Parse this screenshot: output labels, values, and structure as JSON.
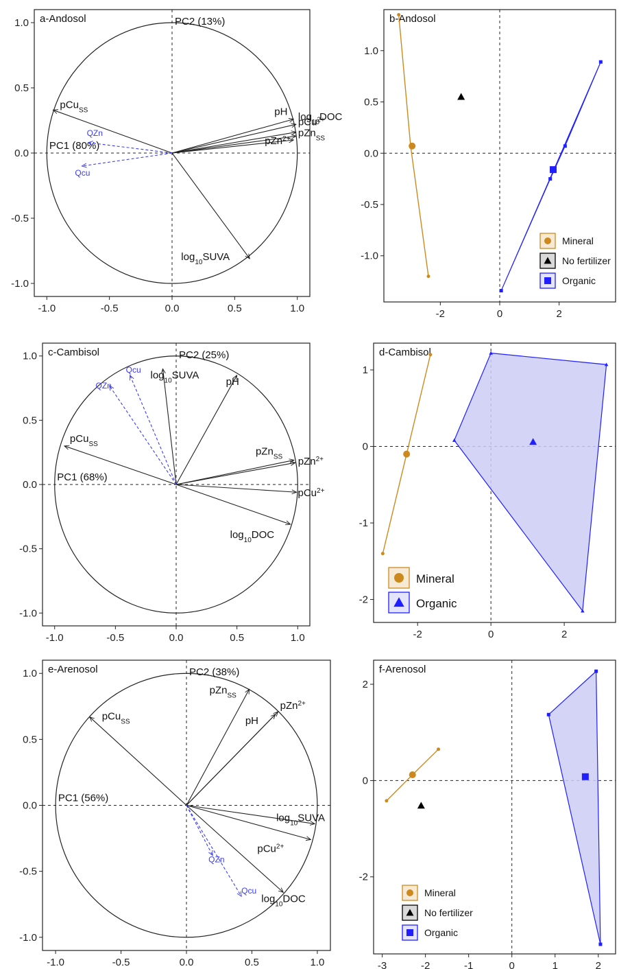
{
  "figure": {
    "colors": {
      "mineral": "#cc8a1e",
      "no_fertilizer": "#000000",
      "organic": "#1f1fff",
      "organic_fill": "#cccdf5",
      "loading": "#222222",
      "qvar": "#3a3aff"
    }
  },
  "chart_data": [
    {
      "type": "scatter",
      "panel": "a-Andosol",
      "pc1_label": "PC1 (80%)",
      "pc2_label": "PC2 (13%)",
      "xlim": [
        -1.1,
        1.1
      ],
      "ylim": [
        -1.1,
        1.1
      ],
      "xticks": [
        "-1.0",
        "-0.5",
        "0.0",
        "0.5",
        "1.0"
      ],
      "yticks": [
        "1.0",
        "0.5",
        "0.0",
        "-0.5",
        "-1.0"
      ],
      "variables": [
        {
          "label": "pCu",
          "sub": "SS",
          "sup": "",
          "x": -0.95,
          "y": 0.33
        },
        {
          "label": "pH",
          "sub": "",
          "sup": "",
          "x": 0.97,
          "y": 0.26
        },
        {
          "label": "log",
          "sub": "10",
          "sup": "",
          "after": "DOC",
          "x": 0.99,
          "y": 0.22
        },
        {
          "label": "pCu",
          "sub": "",
          "sup": "2+",
          "x": 0.99,
          "y": 0.16
        },
        {
          "label": "pZn",
          "sub": "SS",
          "sup": "",
          "x": 0.99,
          "y": 0.13
        },
        {
          "label": "pZn",
          "sub": "",
          "sup": "2+",
          "x": 0.97,
          "y": 0.1
        },
        {
          "label": "log",
          "sub": "10",
          "sup": "",
          "after": "SUVA",
          "x": 0.62,
          "y": -0.81
        }
      ],
      "supplementary": [
        {
          "label": "QZn",
          "x": -0.67,
          "y": 0.08
        },
        {
          "label": "Qcu",
          "x": -0.72,
          "y": -0.1
        }
      ]
    },
    {
      "type": "scatter",
      "panel": "b-Andosol",
      "xlim": [
        -3.9,
        3.9
      ],
      "ylim": [
        -1.45,
        1.4
      ],
      "xticks": [
        "-2",
        "0",
        "2"
      ],
      "yticks": [
        "1.0",
        "0.5",
        "0.0",
        "-0.5",
        "-1.0"
      ],
      "legend": [
        "Mineral",
        "No fertilizer",
        "Organic"
      ],
      "legend_position": "bottom-right",
      "groups": [
        {
          "name": "Mineral",
          "hull": [
            [
              -3.4,
              1.35
            ],
            [
              -3.0,
              0.07
            ],
            [
              -2.4,
              -1.2
            ]
          ],
          "centroid": [
            -2.95,
            0.07
          ]
        },
        {
          "name": "No fertilizer",
          "hull": [],
          "centroid": [
            -1.3,
            0.55
          ]
        },
        {
          "name": "Organic",
          "hull": [
            [
              3.4,
              0.89
            ],
            [
              2.2,
              0.07
            ],
            [
              1.7,
              -0.25
            ],
            [
              0.05,
              -1.34
            ]
          ],
          "centroid": [
            1.8,
            -0.16
          ]
        }
      ]
    },
    {
      "type": "scatter",
      "panel": "c-Cambisol",
      "pc1_label": "PC1 (68%)",
      "pc2_label": "PC2 (25%)",
      "xlim": [
        -1.1,
        1.1
      ],
      "ylim": [
        -1.1,
        1.1
      ],
      "xticks": [
        "-1.0",
        "-0.5",
        "0.0",
        "0.5",
        "1.0"
      ],
      "yticks": [
        "1.0",
        "0.5",
        "0.0",
        "-0.5",
        "-1.0"
      ],
      "variables": [
        {
          "label": "log",
          "sub": "10",
          "sup": "",
          "after": "SUVA",
          "x": -0.11,
          "y": 0.9
        },
        {
          "label": "pH",
          "sub": "",
          "sup": "",
          "x": 0.5,
          "y": 0.85
        },
        {
          "label": "pCu",
          "sub": "SS",
          "sup": "",
          "x": -0.92,
          "y": 0.3
        },
        {
          "label": "pZn",
          "sub": "SS",
          "sup": "",
          "x": 0.97,
          "y": 0.19
        },
        {
          "label": "pZn",
          "sub": "",
          "sup": "2+",
          "x": 0.98,
          "y": 0.17
        },
        {
          "label": "pCu",
          "sub": "",
          "sup": "2+",
          "x": 0.99,
          "y": -0.06
        },
        {
          "label": "log",
          "sub": "10",
          "sup": "",
          "after": "DOC",
          "x": 0.94,
          "y": -0.31
        }
      ],
      "supplementary": [
        {
          "label": "QZn",
          "x": -0.55,
          "y": 0.77
        },
        {
          "label": "Qcu",
          "x": -0.38,
          "y": 0.85
        }
      ]
    },
    {
      "type": "scatter",
      "panel": "d-Cambisol",
      "xlim": [
        -3.2,
        3.4
      ],
      "ylim": [
        -2.3,
        1.35
      ],
      "xticks": [
        "-2",
        "0",
        "2"
      ],
      "yticks": [
        "1",
        "0",
        "-1",
        "-2"
      ],
      "legend": [
        "Mineral",
        "Organic"
      ],
      "legend_position": "bottom-left",
      "groups": [
        {
          "name": "Mineral",
          "hull": [
            [
              -1.65,
              1.2
            ],
            [
              -2.3,
              -0.1
            ],
            [
              -2.95,
              -1.4
            ]
          ],
          "centroid": [
            -2.3,
            -0.1
          ]
        },
        {
          "name": "Organic",
          "hull": [
            [
              0.0,
              1.22
            ],
            [
              3.15,
              1.07
            ],
            [
              2.5,
              -2.15
            ],
            [
              -1.0,
              0.08
            ]
          ],
          "centroid": [
            1.15,
            0.06
          ]
        }
      ]
    },
    {
      "type": "scatter",
      "panel": "e-Arenosol",
      "pc1_label": "PC1 (56%)",
      "pc2_label": "PC2 (38%)",
      "xlim": [
        -1.1,
        1.1
      ],
      "ylim": [
        -1.1,
        1.1
      ],
      "xticks": [
        "-1.0",
        "-0.5",
        "0.0",
        "0.5",
        "1.0"
      ],
      "yticks": [
        "1.0",
        "0.5",
        "0.0",
        "-0.5",
        "-1.0"
      ],
      "variables": [
        {
          "label": "pCu",
          "sub": "SS",
          "sup": "",
          "x": -0.74,
          "y": 0.67
        },
        {
          "label": "pZn",
          "sub": "SS",
          "sup": "",
          "x": 0.48,
          "y": 0.88
        },
        {
          "label": "pZn",
          "sub": "",
          "sup": "2+",
          "x": 0.7,
          "y": 0.71
        },
        {
          "label": "pH",
          "sub": "",
          "sup": "",
          "x": 0.68,
          "y": 0.69
        },
        {
          "label": "log",
          "sub": "10",
          "sup": "",
          "after": "SUVA",
          "x": 0.98,
          "y": -0.14
        },
        {
          "label": "pCu",
          "sub": "",
          "sup": "2+",
          "x": 0.95,
          "y": -0.26
        },
        {
          "label": "log",
          "sub": "10",
          "sup": "",
          "after": "DOC",
          "x": 0.74,
          "y": -0.66
        }
      ],
      "supplementary": [
        {
          "label": "QZn",
          "x": 0.2,
          "y": -0.38
        },
        {
          "label": "Qcu",
          "x": 0.42,
          "y": -0.69
        }
      ]
    },
    {
      "type": "scatter",
      "panel": "f-Arenosol",
      "xlim": [
        -3.2,
        2.4
      ],
      "ylim": [
        -3.6,
        2.5
      ],
      "xticks": [
        "-3",
        "-2",
        "-1",
        "0",
        "1",
        "2"
      ],
      "yticks": [
        "2",
        "0",
        "-2"
      ],
      "legend": [
        "Mineral",
        "No fertilizer",
        "Organic"
      ],
      "legend_position": "bottom-left",
      "groups": [
        {
          "name": "Mineral",
          "hull": [
            [
              -1.7,
              0.65
            ],
            [
              -2.3,
              0.12
            ],
            [
              -2.9,
              -0.42
            ]
          ],
          "centroid": [
            -2.3,
            0.12
          ]
        },
        {
          "name": "No fertilizer",
          "hull": [],
          "centroid": [
            -2.1,
            -0.52
          ]
        },
        {
          "name": "Organic",
          "hull": [
            [
              0.85,
              1.37
            ],
            [
              1.95,
              2.27
            ],
            [
              2.05,
              -3.4
            ]
          ],
          "centroid": [
            1.7,
            0.08
          ]
        }
      ]
    }
  ]
}
